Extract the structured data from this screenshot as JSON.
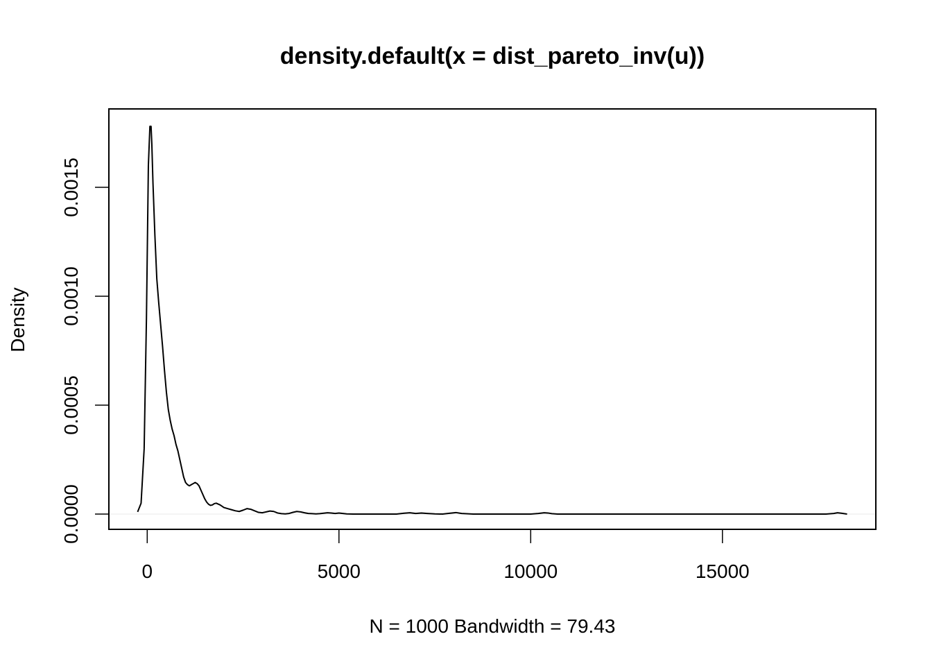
{
  "chart_data": {
    "type": "line",
    "title": "density.default(x = dist_pareto_inv(u))",
    "xlabel": "N = 1000   Bandwidth = 79.43",
    "ylabel": "Density",
    "xlim": [
      -1000,
      19000
    ],
    "ylim": [
      -7e-05,
      0.00186
    ],
    "x_ticks": [
      0,
      5000,
      10000,
      15000
    ],
    "x_tick_labels": [
      "0",
      "5000",
      "10000",
      "15000"
    ],
    "y_ticks": [
      0,
      0.0005,
      0.001,
      0.0015
    ],
    "y_tick_labels": [
      "0.0000",
      "0.0005",
      "0.0010",
      "0.0015"
    ],
    "grid": false,
    "legend": "none",
    "series": [
      {
        "x": [
          -250,
          -160,
          -80,
          -20,
          30,
          70,
          100,
          120,
          150,
          200,
          250,
          300,
          350,
          400,
          450,
          500,
          550,
          600,
          650,
          700,
          750,
          800,
          850,
          900,
          950,
          1000,
          1050,
          1100,
          1150,
          1200,
          1250,
          1300,
          1350,
          1400,
          1450,
          1500,
          1550,
          1600,
          1650,
          1700,
          1750,
          1800,
          1900,
          2000,
          2100,
          2200,
          2300,
          2400,
          2500,
          2600,
          2700,
          2800,
          2900,
          3000,
          3100,
          3200,
          3300,
          3400,
          3500,
          3600,
          3700,
          3800,
          3900,
          4000,
          4100,
          4200,
          4300,
          4400,
          4500,
          4600,
          4700,
          4800,
          4900,
          5000,
          5100,
          5200,
          5400,
          5800,
          6200,
          6500,
          6700,
          6850,
          7000,
          7150,
          7300,
          7500,
          7700,
          7900,
          8050,
          8200,
          8500,
          9000,
          9500,
          10000,
          10200,
          10350,
          10450,
          10550,
          10700,
          11000,
          12000,
          13000,
          14000,
          15000,
          16000,
          17000,
          17700,
          17900,
          18000,
          18100,
          18250
        ],
        "y": [
          1e-05,
          5e-05,
          0.0003,
          0.0009,
          0.0016,
          0.00178,
          0.00178,
          0.0017,
          0.00152,
          0.00128,
          0.00108,
          0.00097,
          0.00087,
          0.00077,
          0.00066,
          0.00056,
          0.00048,
          0.00043,
          0.00039,
          0.00036,
          0.00032,
          0.00029,
          0.00025,
          0.00021,
          0.00017,
          0.000145,
          0.000135,
          0.00013,
          0.000135,
          0.00014,
          0.000145,
          0.00014,
          0.00013,
          0.00011,
          9e-05,
          7e-05,
          5.5e-05,
          4.5e-05,
          4e-05,
          4.2e-05,
          4.8e-05,
          5e-05,
          4.2e-05,
          3e-05,
          2.5e-05,
          2e-05,
          1.5e-05,
          1.2e-05,
          1.8e-05,
          2.5e-05,
          2.2e-05,
          1.5e-05,
          8e-06,
          6e-06,
          1e-05,
          1.4e-05,
          1.2e-05,
          5e-06,
          2e-06,
          1e-06,
          3e-06,
          8e-06,
          1.2e-05,
          1e-05,
          6e-06,
          3e-06,
          2e-06,
          1e-06,
          2e-06,
          4e-06,
          6e-06,
          5e-06,
          3e-06,
          5e-06,
          3e-06,
          1e-06,
          0.0,
          0.0,
          0.0,
          0.0,
          4e-06,
          6e-06,
          3e-06,
          5e-06,
          3e-06,
          1e-06,
          0.0,
          4e-06,
          7e-06,
          3e-06,
          0.0,
          0.0,
          0.0,
          0.0,
          3e-06,
          6e-06,
          5e-06,
          2e-06,
          0.0,
          0.0,
          0.0,
          0.0,
          0.0,
          0.0,
          0.0,
          0.0,
          0.0,
          3e-06,
          6e-06,
          4e-06,
          0.0
        ]
      }
    ]
  }
}
